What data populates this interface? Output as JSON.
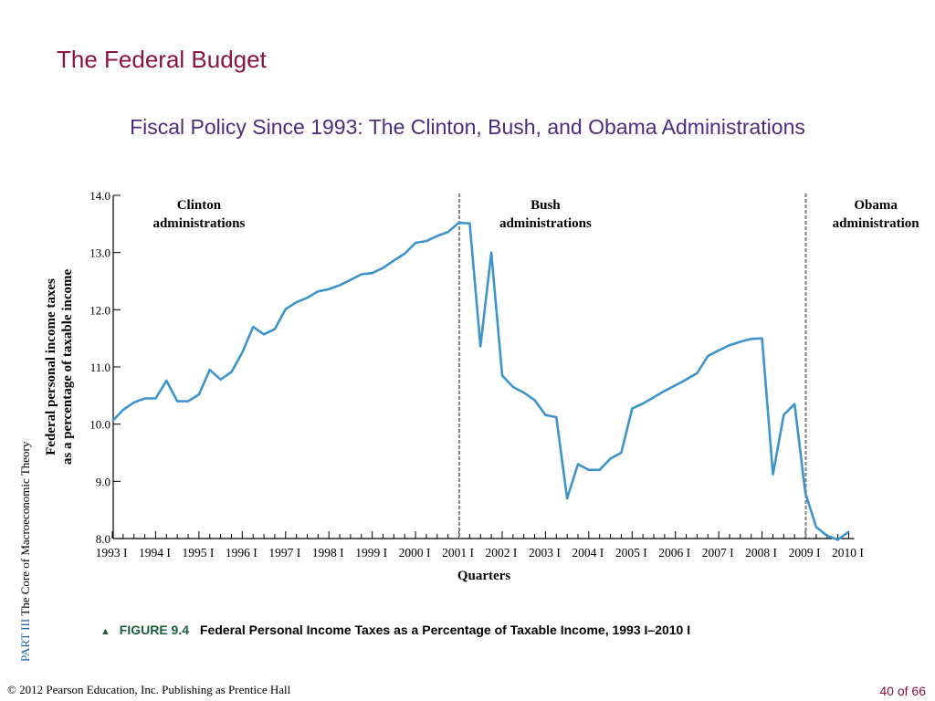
{
  "slide": {
    "title": "The Federal Budget",
    "subtitle": "Fiscal Policy Since 1993: The Clinton, Bush, and Obama Administrations",
    "side_part": "PART  III",
    "side_text": "The Core of Macroeconomic Theory",
    "figure_label": "FIGURE 9.4",
    "figure_caption": "Federal Personal Income Taxes as a Percentage of Taxable Income, 1993 I–2010 I",
    "footer": "© 2012 Pearson Education, Inc. Publishing as Prentice Hall",
    "page": "40 of 66"
  },
  "colors": {
    "title": "#8b1538",
    "subtitle": "#4b2c7f",
    "line": "#3d94cc",
    "divider": "#888888",
    "figure_label": "#1a5e3a"
  },
  "chart_data": {
    "type": "line",
    "ylabel": "Federal personal income taxes as a percentage of taxable income",
    "xlabel": "Quarters",
    "ylim": [
      8.0,
      14.0
    ],
    "yticks": [
      "14.0",
      "13.0",
      "12.0",
      "11.0",
      "10.0",
      "9.0",
      "8.0"
    ],
    "xticks": [
      "1993 I",
      "1994 I",
      "1995 I",
      "1996 I",
      "1997 I",
      "1998 I",
      "1999 I",
      "2000 I",
      "2001 I",
      "2002 I",
      "2003 I",
      "2004 I",
      "2005 I",
      "2006 I",
      "2007 I",
      "2008 I",
      "2009 I",
      "2010 I"
    ],
    "annotations": [
      {
        "line1": "Clinton",
        "line2": "administrations",
        "at_quarter": 8
      },
      {
        "line1": "Bush",
        "line2": "administrations",
        "at_quarter": 40
      },
      {
        "line1": "Obama",
        "line2": "administration",
        "at_quarter": 70.5
      }
    ],
    "dividers": [
      32,
      64
    ],
    "series": [
      {
        "values": [
          10.05,
          10.25,
          10.38,
          10.45,
          10.45,
          10.76,
          10.4,
          10.4,
          10.52,
          10.95,
          10.78,
          10.91,
          11.25,
          11.7,
          11.57,
          11.66,
          12.01,
          12.13,
          12.21,
          12.32,
          12.36,
          12.43,
          12.52,
          12.62,
          12.64,
          12.73,
          12.86,
          12.98,
          13.17,
          13.2,
          13.29,
          13.36,
          13.52,
          13.51,
          11.36,
          13.0,
          10.85,
          10.65,
          10.55,
          10.42,
          10.16,
          10.12,
          8.7,
          9.3,
          9.2,
          9.2,
          9.4,
          9.5,
          10.27,
          10.36,
          10.47,
          10.58,
          10.68,
          10.78,
          10.89,
          11.19,
          11.29,
          11.38,
          11.44,
          11.49,
          11.5,
          9.12,
          10.16,
          10.35,
          8.8,
          8.2,
          8.05,
          7.98,
          8.12
        ]
      }
    ]
  }
}
